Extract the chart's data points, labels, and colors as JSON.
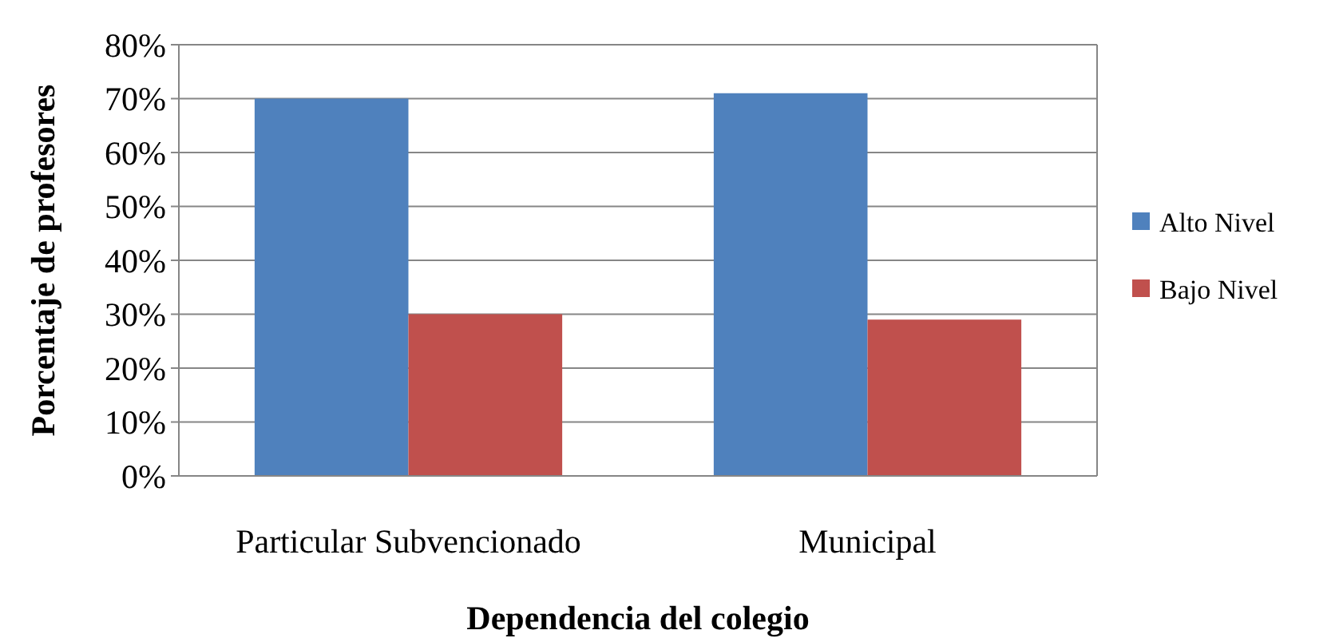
{
  "chart_data": {
    "type": "bar",
    "xlabel": "Dependencia del colegio",
    "ylabel": "Porcentaje de profesores",
    "categories": [
      "Particular Subvencionado",
      "Municipal"
    ],
    "series": [
      {
        "name": "Alto Nivel",
        "color": "#4f81bd",
        "values": [
          70,
          71
        ]
      },
      {
        "name": "Bajo Nivel",
        "color": "#c0504d",
        "values": [
          30,
          29
        ]
      }
    ],
    "ylim": [
      0,
      80
    ],
    "yticks": [
      {
        "value": 0,
        "label": "0%"
      },
      {
        "value": 10,
        "label": "10%"
      },
      {
        "value": 20,
        "label": "20%"
      },
      {
        "value": 30,
        "label": "30%"
      },
      {
        "value": 40,
        "label": "40%"
      },
      {
        "value": 50,
        "label": "50%"
      },
      {
        "value": 60,
        "label": "60%"
      },
      {
        "value": 70,
        "label": "70%"
      },
      {
        "value": 80,
        "label": "80%"
      }
    ],
    "grid": "y",
    "legend": "right"
  }
}
